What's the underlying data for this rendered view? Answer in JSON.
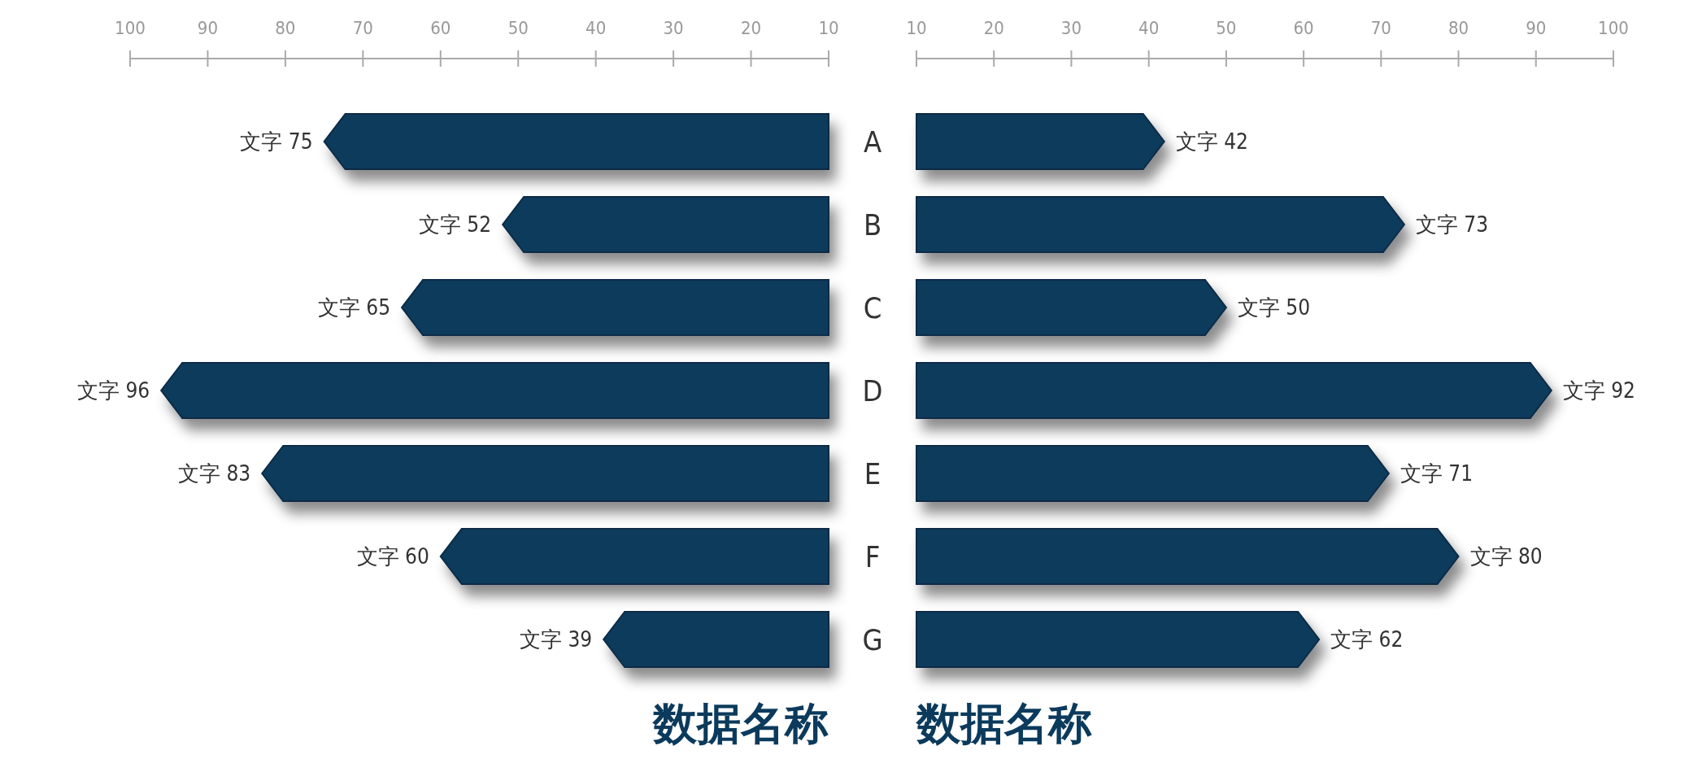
{
  "chart_data": [
    {
      "type": "bar",
      "orientation": "horizontal",
      "categories": [
        "A",
        "B",
        "C",
        "D",
        "E",
        "F",
        "G"
      ],
      "values": [
        75,
        52,
        65,
        96,
        83,
        60,
        39
      ],
      "color": "#0b3a5c",
      "value_labels": [
        "文字 75",
        "文字 52",
        "文字 65",
        "文字 96",
        "文字 83",
        "文字 60",
        "文字 39"
      ],
      "xlim": [
        100,
        10
      ],
      "xticks": [
        100,
        90,
        80,
        70,
        60,
        50,
        40,
        30,
        20,
        10
      ],
      "xlabel": "数据名称"
    },
    {
      "type": "bar",
      "orientation": "horizontal",
      "categories": [
        null,
        null,
        null,
        null,
        null,
        null,
        null
      ],
      "values": [
        42,
        73,
        50,
        92,
        71,
        80,
        62
      ],
      "color": "#0b3a5c",
      "value_labels": [
        "文字 42",
        "文字 73",
        "文字 50",
        "文字 92",
        "文字 71",
        "文字 80",
        "文字 62"
      ],
      "xlim": [
        10,
        100
      ],
      "xticks": [
        10,
        20,
        30,
        40,
        50,
        60,
        70,
        80,
        90,
        100
      ],
      "xlabel": "数据名称"
    }
  ]
}
